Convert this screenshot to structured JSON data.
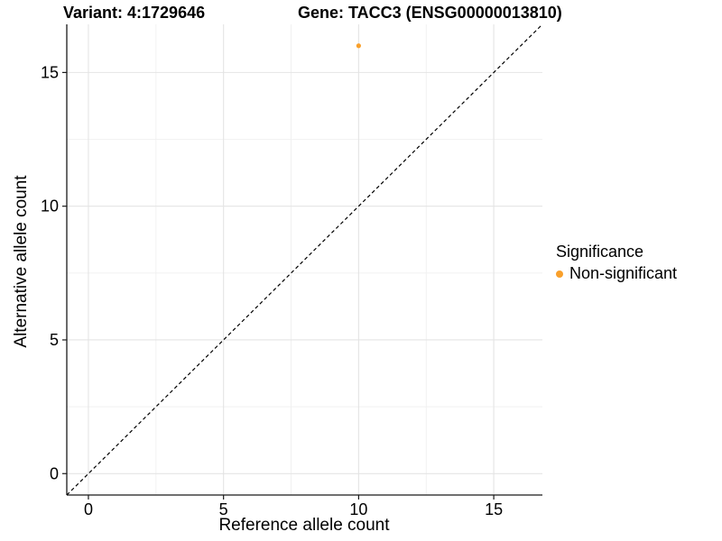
{
  "header": {
    "variant_title": "Variant: 4:1729646",
    "gene_title": "Gene: TACC3 (ENSG00000013810)"
  },
  "legend": {
    "title": "Significance",
    "items": [
      {
        "label": "Non-significant",
        "color": "#F9A02B"
      }
    ]
  },
  "colors": {
    "point_orange": "#F9A02B",
    "grid_major": "#E4E4E4",
    "grid_minor": "#F0F0F0",
    "axis_line": "#1a1a1a",
    "tick_text": "#000000",
    "reference_line": "#000000",
    "background": "#ffffff"
  },
  "chart_data": {
    "type": "scatter",
    "title": "Variant: 4:1729646    Gene: TACC3 (ENSG00000013810)",
    "xlabel": "Reference allele count",
    "ylabel": "Alternative allele count",
    "xlim": [
      -0.8,
      16.8
    ],
    "ylim": [
      -0.8,
      16.8
    ],
    "x_ticks": [
      0,
      5,
      10,
      15
    ],
    "y_ticks": [
      0,
      5,
      10,
      15
    ],
    "x_minor_ticks": [
      2.5,
      7.5,
      12.5
    ],
    "y_minor_ticks": [
      2.5,
      7.5,
      12.5
    ],
    "grid": true,
    "legend_position": "right",
    "series": [
      {
        "name": "Non-significant",
        "color": "#F9A02B",
        "points": [
          [
            10,
            16
          ]
        ],
        "point_radius": 2.6
      }
    ],
    "reference_line": {
      "type": "abline",
      "slope": 1,
      "intercept": 0,
      "style": "dashed",
      "color": "#000000"
    }
  }
}
